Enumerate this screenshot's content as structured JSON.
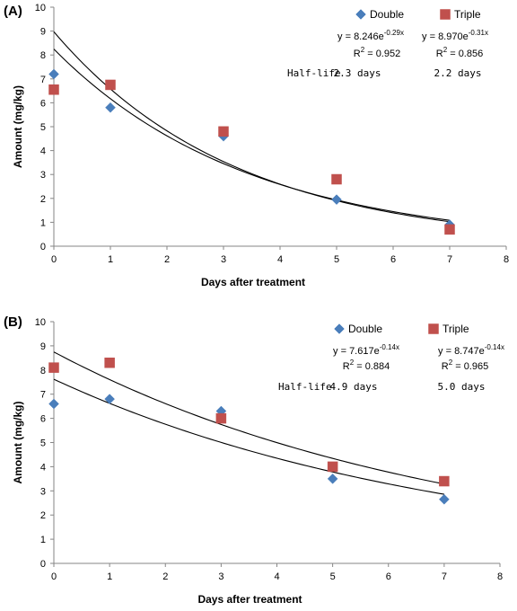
{
  "chart_data": [
    {
      "panel_label": "(A)",
      "type": "scatter",
      "xlabel": "Days after treatment",
      "ylabel": "Amount (mg/kg)",
      "xlim": [
        0,
        8
      ],
      "ylim": [
        0,
        10
      ],
      "xticks": [
        "0",
        "1",
        "2",
        "3",
        "4",
        "5",
        "6",
        "7",
        "8"
      ],
      "yticks": [
        "0",
        "1",
        "2",
        "3",
        "4",
        "5",
        "6",
        "7",
        "8",
        "9",
        "10"
      ],
      "grid": false,
      "series": [
        {
          "name": "Double",
          "marker": "diamond",
          "color": "#4a7ebb",
          "x": [
            0,
            1,
            3,
            5,
            7
          ],
          "y": [
            7.2,
            5.8,
            4.6,
            1.95,
            0.9
          ],
          "fit": {
            "a": 8.246,
            "b": -0.29
          },
          "equation": {
            "prefix": "y = 8.246e",
            "exponent": "-0.29x"
          },
          "r2": {
            "prefix": "R",
            "sup": "2",
            "suffix": " = 0.952"
          },
          "half_life": "2.3 days"
        },
        {
          "name": "Triple",
          "marker": "square",
          "color": "#c0504d",
          "x": [
            0,
            1,
            3,
            5,
            7
          ],
          "y": [
            6.55,
            6.75,
            4.8,
            2.8,
            0.7
          ],
          "fit": {
            "a": 8.97,
            "b": -0.31
          },
          "equation": {
            "prefix": "y = 8.970e",
            "exponent": "-0.31x"
          },
          "r2": {
            "prefix": "R",
            "sup": "2",
            "suffix": " = 0.856"
          },
          "half_life": "2.2 days"
        }
      ],
      "half_life_label": "Half-life"
    },
    {
      "panel_label": "(B)",
      "type": "scatter",
      "xlabel": "Days after treatment",
      "ylabel": "Amount (mg/kg)",
      "xlim": [
        0,
        8
      ],
      "ylim": [
        0,
        10
      ],
      "xticks": [
        "0",
        "1",
        "2",
        "3",
        "4",
        "5",
        "6",
        "7",
        "8"
      ],
      "yticks": [
        "0",
        "1",
        "2",
        "3",
        "4",
        "5",
        "6",
        "7",
        "8",
        "9",
        "10"
      ],
      "grid": false,
      "series": [
        {
          "name": "Double",
          "marker": "diamond",
          "color": "#4a7ebb",
          "x": [
            0,
            1,
            3,
            5,
            7
          ],
          "y": [
            6.6,
            6.8,
            6.3,
            3.5,
            2.65
          ],
          "fit": {
            "a": 7.617,
            "b": -0.14
          },
          "equation": {
            "prefix": "y = 7.617e",
            "exponent": "-0.14x"
          },
          "r2": {
            "prefix": "R",
            "sup": "2",
            "suffix": " = 0.884"
          },
          "half_life": "4.9 days"
        },
        {
          "name": "Triple",
          "marker": "square",
          "color": "#c0504d",
          "x": [
            0,
            1,
            3,
            5,
            7
          ],
          "y": [
            8.1,
            8.3,
            6.0,
            4.0,
            3.4
          ],
          "fit": {
            "a": 8.747,
            "b": -0.14
          },
          "equation": {
            "prefix": "y = 8.747e",
            "exponent": "-0.14x"
          },
          "r2": {
            "prefix": "R",
            "sup": "2",
            "suffix": " = 0.965"
          },
          "half_life": "5.0 days"
        }
      ],
      "half_life_label": "Half-life"
    }
  ]
}
